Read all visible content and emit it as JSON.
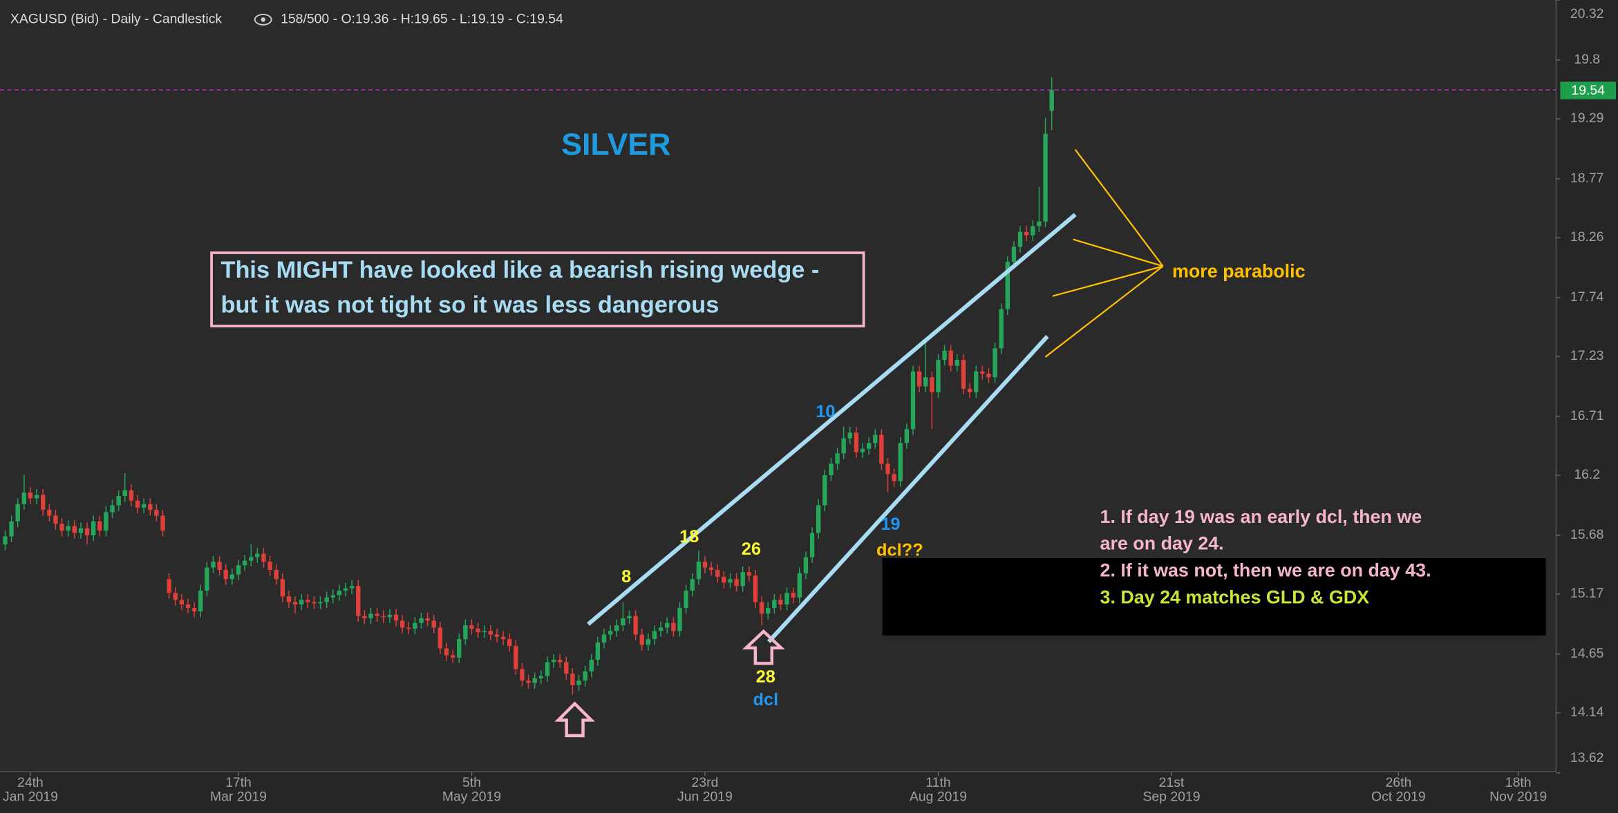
{
  "chart_data": {
    "type": "candlestick",
    "header": "XAGUSD (Bid) - Daily - Candlestick",
    "header_stats": "158/500 - O:19.36 - H:19.65 - L:19.19 - C:19.54",
    "up_color": "#26a65b",
    "down_color": "#e0403a",
    "open": [
      15.6,
      15.67,
      15.8,
      15.95,
      16.05,
      16.0,
      16.03,
      15.9,
      15.85,
      15.78,
      15.72,
      15.76,
      15.7,
      15.74,
      15.68,
      15.8,
      15.72,
      15.88,
      15.94,
      16.02,
      16.07,
      15.98,
      15.92,
      15.95,
      15.9,
      15.85,
      15.3,
      15.18,
      15.12,
      15.08,
      15.05,
      15.02,
      15.2,
      15.4,
      15.45,
      15.38,
      15.3,
      15.34,
      15.42,
      15.46,
      15.49,
      15.52,
      15.45,
      15.38,
      15.3,
      15.15,
      15.1,
      15.08,
      15.12,
      15.1,
      15.09,
      15.1,
      15.14,
      15.16,
      15.2,
      15.22,
      15.24,
      14.98,
      14.96,
      15.0,
      14.98,
      14.97,
      14.99,
      14.94,
      14.88,
      14.87,
      14.92,
      14.96,
      14.94,
      14.88,
      14.7,
      14.64,
      14.62,
      14.78,
      14.9,
      14.87,
      14.84,
      14.85,
      14.82,
      14.8,
      14.78,
      14.72,
      14.52,
      14.42,
      14.4,
      14.44,
      14.46,
      14.58,
      14.6,
      14.58,
      14.48,
      14.38,
      14.42,
      14.5,
      14.6,
      14.75,
      14.82,
      14.85,
      14.9,
      14.96,
      14.98,
      14.82,
      14.73,
      14.78,
      14.85,
      14.88,
      14.92,
      14.85,
      15.05,
      15.2,
      15.3,
      15.45,
      15.4,
      15.38,
      15.32,
      15.27,
      15.3,
      15.24,
      15.36,
      15.33,
      15.1,
      15.0,
      15.05,
      15.12,
      15.08,
      15.18,
      15.14,
      15.35,
      15.49,
      15.7,
      15.94,
      16.2,
      16.3,
      16.39,
      16.52,
      16.57,
      16.4,
      16.43,
      16.48,
      16.55,
      16.3,
      16.21,
      16.15,
      16.48,
      16.6,
      17.1,
      16.97,
      17.05,
      16.92,
      17.2,
      17.28,
      17.15,
      17.2,
      16.95,
      16.92,
      17.1,
      17.08,
      17.05,
      17.3,
      17.64,
      18.05,
      18.18,
      18.31,
      18.28,
      18.36,
      18.4,
      19.36
    ],
    "high": [
      15.72,
      15.85,
      16.0,
      16.2,
      16.1,
      16.08,
      16.08,
      15.95,
      15.9,
      15.83,
      15.81,
      15.81,
      15.79,
      15.79,
      15.85,
      15.85,
      15.93,
      15.99,
      16.07,
      16.22,
      16.12,
      16.03,
      16.0,
      16.0,
      15.95,
      15.9,
      15.35,
      15.23,
      15.17,
      15.13,
      15.1,
      15.25,
      15.45,
      15.5,
      15.5,
      15.43,
      15.39,
      15.47,
      15.51,
      15.6,
      15.57,
      15.57,
      15.5,
      15.43,
      15.35,
      15.2,
      15.15,
      15.17,
      15.17,
      15.15,
      15.15,
      15.19,
      15.21,
      15.25,
      15.27,
      15.29,
      15.29,
      15.03,
      15.05,
      15.05,
      15.03,
      15.04,
      15.04,
      14.99,
      14.93,
      14.97,
      15.01,
      15.01,
      14.99,
      14.93,
      14.75,
      14.69,
      14.83,
      14.95,
      14.95,
      14.92,
      14.9,
      14.9,
      14.87,
      14.85,
      14.83,
      14.77,
      14.57,
      14.47,
      14.49,
      14.51,
      14.63,
      14.65,
      14.65,
      14.63,
      14.53,
      14.47,
      14.55,
      14.65,
      14.8,
      14.87,
      14.9,
      14.95,
      15.1,
      15.03,
      15.03,
      14.87,
      14.83,
      14.9,
      14.93,
      14.97,
      14.97,
      15.1,
      15.25,
      15.35,
      15.55,
      15.5,
      15.45,
      15.43,
      15.37,
      15.35,
      15.35,
      15.41,
      15.41,
      15.38,
      15.15,
      15.1,
      15.17,
      15.17,
      15.23,
      15.23,
      15.4,
      15.54,
      15.75,
      15.99,
      16.25,
      16.35,
      16.44,
      16.62,
      16.62,
      16.62,
      16.48,
      16.53,
      16.6,
      16.6,
      16.35,
      16.26,
      16.53,
      16.65,
      17.15,
      17.15,
      17.35,
      17.1,
      17.25,
      17.33,
      17.33,
      17.25,
      17.25,
      17.0,
      17.15,
      17.15,
      17.13,
      17.35,
      17.69,
      18.1,
      18.23,
      18.36,
      18.36,
      18.41,
      18.7,
      19.3,
      19.65
    ],
    "low": [
      15.55,
      15.62,
      15.75,
      15.9,
      15.95,
      15.95,
      15.85,
      15.8,
      15.73,
      15.67,
      15.67,
      15.65,
      15.65,
      15.6,
      15.63,
      15.67,
      15.67,
      15.83,
      15.89,
      15.97,
      15.93,
      15.87,
      15.87,
      15.85,
      15.8,
      15.67,
      15.13,
      15.07,
      15.03,
      15.0,
      14.97,
      14.97,
      15.15,
      15.35,
      15.33,
      15.25,
      15.25,
      15.29,
      15.37,
      15.41,
      15.44,
      15.4,
      15.33,
      15.25,
      15.1,
      15.05,
      15.0,
      15.03,
      15.05,
      15.04,
      15.04,
      15.05,
      15.09,
      15.11,
      15.15,
      15.17,
      14.93,
      14.91,
      14.91,
      14.93,
      14.92,
      14.92,
      14.89,
      14.83,
      14.82,
      14.82,
      14.87,
      14.89,
      14.83,
      14.65,
      14.59,
      14.57,
      14.57,
      14.73,
      14.82,
      14.79,
      14.79,
      14.77,
      14.75,
      14.73,
      14.67,
      14.47,
      14.37,
      14.35,
      14.35,
      14.39,
      14.41,
      14.53,
      14.53,
      14.43,
      14.3,
      14.33,
      14.37,
      14.45,
      14.55,
      14.7,
      14.77,
      14.8,
      14.85,
      14.91,
      14.77,
      14.68,
      14.68,
      14.73,
      14.8,
      14.83,
      14.8,
      14.8,
      15.0,
      15.15,
      15.25,
      15.35,
      15.33,
      15.27,
      15.22,
      15.22,
      15.19,
      15.19,
      15.28,
      15.05,
      14.9,
      14.95,
      15.0,
      15.03,
      15.03,
      15.09,
      15.09,
      15.3,
      15.44,
      15.65,
      15.89,
      16.15,
      16.25,
      16.34,
      16.47,
      16.35,
      16.35,
      16.38,
      16.43,
      16.25,
      16.05,
      16.1,
      16.1,
      16.43,
      16.55,
      16.92,
      16.92,
      16.6,
      16.87,
      17.15,
      17.1,
      17.1,
      16.9,
      16.87,
      16.87,
      17.03,
      17.0,
      17.0,
      17.25,
      17.59,
      18.0,
      18.13,
      18.23,
      18.23,
      18.31,
      18.35,
      19.19
    ],
    "close": [
      15.67,
      15.8,
      15.95,
      16.05,
      16.0,
      16.03,
      15.9,
      15.85,
      15.78,
      15.72,
      15.76,
      15.7,
      15.74,
      15.68,
      15.8,
      15.72,
      15.88,
      15.94,
      16.02,
      16.07,
      15.98,
      15.92,
      15.95,
      15.9,
      15.85,
      15.72,
      15.18,
      15.12,
      15.08,
      15.05,
      15.02,
      15.2,
      15.4,
      15.45,
      15.38,
      15.3,
      15.34,
      15.42,
      15.46,
      15.49,
      15.52,
      15.45,
      15.38,
      15.3,
      15.15,
      15.1,
      15.08,
      15.12,
      15.1,
      15.09,
      15.1,
      15.14,
      15.16,
      15.2,
      15.22,
      15.24,
      14.98,
      14.96,
      15.0,
      14.98,
      14.97,
      14.99,
      14.94,
      14.88,
      14.87,
      14.92,
      14.96,
      14.94,
      14.88,
      14.7,
      14.64,
      14.62,
      14.78,
      14.9,
      14.87,
      14.84,
      14.85,
      14.82,
      14.8,
      14.78,
      14.72,
      14.52,
      14.42,
      14.4,
      14.44,
      14.46,
      14.58,
      14.6,
      14.58,
      14.48,
      14.38,
      14.42,
      14.5,
      14.6,
      14.75,
      14.82,
      14.85,
      14.9,
      14.96,
      14.98,
      14.82,
      14.73,
      14.78,
      14.85,
      14.88,
      14.92,
      14.85,
      15.05,
      15.2,
      15.3,
      15.45,
      15.4,
      15.38,
      15.32,
      15.27,
      15.3,
      15.24,
      15.36,
      15.33,
      15.1,
      15.0,
      15.05,
      15.12,
      15.08,
      15.18,
      15.14,
      15.35,
      15.49,
      15.7,
      15.94,
      16.2,
      16.3,
      16.39,
      16.52,
      16.57,
      16.4,
      16.43,
      16.48,
      16.55,
      16.3,
      16.21,
      16.15,
      16.48,
      16.6,
      17.1,
      16.97,
      17.05,
      16.92,
      17.2,
      17.28,
      17.15,
      17.2,
      16.95,
      16.92,
      17.1,
      17.08,
      17.05,
      17.3,
      17.64,
      18.05,
      18.18,
      18.31,
      18.28,
      18.36,
      18.4,
      19.16,
      19.54
    ],
    "last_price": 19.54,
    "xlim": [
      0,
      246
    ],
    "xticks": [
      {
        "value": 4,
        "label": "24th",
        "sublabel": "Jan 2019"
      },
      {
        "value": 37,
        "label": "17th",
        "sublabel": "Mar 2019"
      },
      {
        "value": 74,
        "label": "5th",
        "sublabel": "May 2019"
      },
      {
        "value": 111,
        "label": "23rd",
        "sublabel": "Jun 2019"
      },
      {
        "value": 148,
        "label": "11th",
        "sublabel": "Aug 2019"
      },
      {
        "value": 185,
        "label": "21st",
        "sublabel": "Sep 2019"
      },
      {
        "value": 221,
        "label": "26th",
        "sublabel": "Oct 2019"
      },
      {
        "value": 240,
        "label": "18th",
        "sublabel": "Nov 2019"
      }
    ],
    "ylim": [
      13.63,
      20.32
    ],
    "yticks": [
      20.32,
      19.8,
      19.29,
      18.77,
      18.26,
      17.74,
      17.23,
      16.71,
      16.2,
      15.68,
      15.17,
      14.65,
      14.14,
      13.62
    ],
    "annotations": {
      "title": "SILVER",
      "box": [
        "This  MIGHT have looked like a bearish rising wedge -",
        "but it was not tight so it was less dangerous"
      ],
      "callout": "more parabolic",
      "counts": [
        "8",
        "18",
        "26",
        "28",
        "10",
        "19"
      ],
      "labels": [
        "dcl",
        "dcl??"
      ],
      "notes": [
        "1. If day 19 was an early dcl, then we",
        "are on day 24.",
        "2. If it was not, then we are on day 43.",
        "3. Day 24 matches GLD & GDX"
      ]
    }
  }
}
